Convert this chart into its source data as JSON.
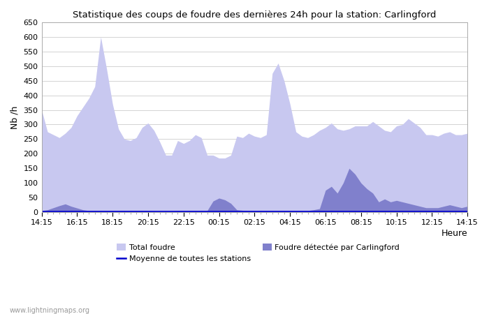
{
  "title": "Statistique des coups de foudre des dernières 24h pour la station: Carlingford",
  "xlabel": "Heure",
  "ylabel": "Nb /h",
  "ylim": [
    0,
    650
  ],
  "yticks": [
    0,
    50,
    100,
    150,
    200,
    250,
    300,
    350,
    400,
    450,
    500,
    550,
    600,
    650
  ],
  "xtick_labels": [
    "14:15",
    "16:15",
    "18:15",
    "20:15",
    "22:15",
    "00:15",
    "02:15",
    "04:15",
    "06:15",
    "08:15",
    "10:15",
    "12:15",
    "14:15"
  ],
  "watermark": "www.lightningmaps.org",
  "color_total": "#c8c8f0",
  "color_local": "#8080cc",
  "color_mean": "#0000cc",
  "total_foudre": [
    350,
    275,
    265,
    255,
    270,
    290,
    330,
    360,
    390,
    430,
    600,
    490,
    370,
    285,
    250,
    245,
    255,
    290,
    305,
    280,
    240,
    195,
    195,
    245,
    235,
    245,
    265,
    255,
    195,
    195,
    185,
    185,
    195,
    260,
    255,
    270,
    260,
    255,
    265,
    475,
    510,
    450,
    370,
    275,
    260,
    255,
    265,
    280,
    290,
    305,
    285,
    280,
    285,
    295,
    295,
    295,
    310,
    295,
    280,
    275,
    295,
    300,
    320,
    305,
    290,
    265,
    265,
    260,
    270,
    275,
    265,
    265,
    270
  ],
  "local_foudre": [
    5,
    8,
    15,
    22,
    28,
    20,
    14,
    8,
    5,
    5,
    5,
    5,
    5,
    5,
    5,
    5,
    5,
    5,
    5,
    3,
    3,
    3,
    3,
    5,
    5,
    5,
    5,
    5,
    5,
    38,
    48,
    42,
    30,
    8,
    6,
    5,
    5,
    5,
    5,
    5,
    5,
    5,
    5,
    5,
    5,
    5,
    8,
    12,
    75,
    88,
    65,
    100,
    150,
    130,
    100,
    80,
    65,
    35,
    45,
    35,
    40,
    35,
    30,
    25,
    20,
    15,
    15,
    15,
    20,
    25,
    20,
    15,
    20
  ],
  "mean_line": [
    3,
    3,
    3,
    3,
    3,
    3,
    3,
    3,
    3,
    3,
    3,
    3,
    3,
    3,
    3,
    3,
    3,
    3,
    3,
    3,
    3,
    3,
    3,
    3,
    3,
    3,
    3,
    3,
    3,
    3,
    3,
    3,
    3,
    3,
    3,
    3,
    3,
    3,
    3,
    3,
    3,
    3,
    3,
    3,
    3,
    3,
    3,
    3,
    3,
    3,
    3,
    3,
    3,
    3,
    3,
    3,
    3,
    3,
    3,
    3,
    3,
    3,
    3,
    3,
    3,
    3,
    3,
    3,
    3,
    3,
    3,
    3,
    3
  ],
  "n_points": 73
}
